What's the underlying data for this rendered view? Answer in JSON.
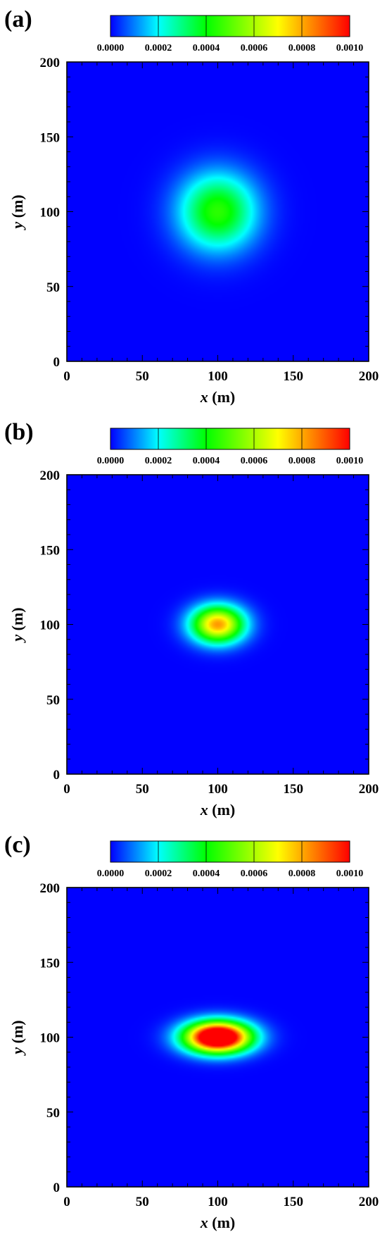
{
  "chart_data": [
    {
      "type": "heatmap",
      "panel_label": "(a)",
      "xlabel_var": "x",
      "xlabel_unit": " (m)",
      "ylabel_var": "y",
      "ylabel_unit": " (m)",
      "xlim": [
        0,
        200
      ],
      "ylim": [
        0,
        200
      ],
      "xticks": [
        0,
        50,
        100,
        150,
        200
      ],
      "yticks": [
        0,
        50,
        100,
        150,
        200
      ],
      "colorbar": {
        "min": 0.0,
        "max": 0.001,
        "tick_labels": [
          "0.0000",
          "0.0002",
          "0.0004",
          "0.0006",
          "0.0008",
          "0.0010"
        ]
      },
      "field": {
        "center": [
          100,
          100
        ],
        "peak": 0.00045,
        "sigma_x": 25,
        "sigma_y": 25
      }
    },
    {
      "type": "heatmap",
      "panel_label": "(b)",
      "xlabel_var": "x",
      "xlabel_unit": " (m)",
      "ylabel_var": "y",
      "ylabel_unit": " (m)",
      "xlim": [
        0,
        200
      ],
      "ylim": [
        0,
        200
      ],
      "xticks": [
        0,
        50,
        100,
        150,
        200
      ],
      "yticks": [
        0,
        50,
        100,
        150,
        200
      ],
      "colorbar": {
        "min": 0.0,
        "max": 0.001,
        "tick_labels": [
          "0.0000",
          "0.0002",
          "0.0004",
          "0.0006",
          "0.0008",
          "0.0010"
        ]
      },
      "field": {
        "center": [
          100,
          100
        ],
        "peak": 0.00082,
        "sigma_x": 17,
        "sigma_y": 12
      }
    },
    {
      "type": "heatmap",
      "panel_label": "(c)",
      "xlabel_var": "x",
      "xlabel_unit": " (m)",
      "ylabel_var": "y",
      "ylabel_unit": " (m)",
      "xlim": [
        0,
        200
      ],
      "ylim": [
        0,
        200
      ],
      "xticks": [
        0,
        50,
        100,
        150,
        200
      ],
      "yticks": [
        0,
        50,
        100,
        150,
        200
      ],
      "colorbar": {
        "min": 0.0,
        "max": 0.001,
        "tick_labels": [
          "0.0000",
          "0.0002",
          "0.0004",
          "0.0006",
          "0.0008",
          "0.0010"
        ]
      },
      "field": {
        "center": [
          100,
          100
        ],
        "peak": 0.0014,
        "sigma_x": 21,
        "sigma_y": 10
      }
    }
  ],
  "colormap": [
    "#0000ff",
    "#00ffff",
    "#00ff00",
    "#ffff00",
    "#ff0000"
  ]
}
